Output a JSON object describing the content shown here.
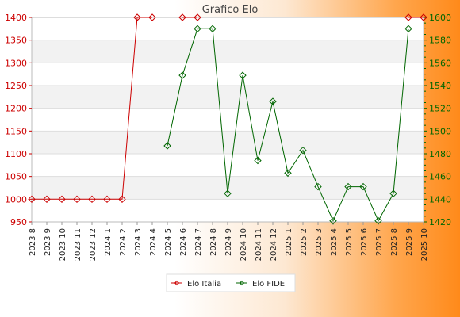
{
  "chart_data": {
    "type": "line",
    "title": "Grafico Elo",
    "categories": [
      "2023 8",
      "2023 9",
      "2023 10",
      "2023 11",
      "2023 12",
      "2024 1",
      "2024 2",
      "2024 3",
      "2024 4",
      "2024 5",
      "2024 6",
      "2024 7",
      "2024 8",
      "2024 9",
      "2024 10",
      "2024 11",
      "2024 12",
      "2025 1",
      "2025 2",
      "2025 3",
      "2025 4",
      "2025 5",
      "2025 6",
      "2025 7",
      "2025 8",
      "2025 9",
      "2025 10"
    ],
    "left_axis": {
      "min": 950,
      "max": 1400,
      "ticks": [
        950,
        1000,
        1050,
        1100,
        1150,
        1200,
        1250,
        1300,
        1350,
        1400
      ],
      "color": "#cc0000"
    },
    "right_axis": {
      "min": 1420,
      "max": 1600,
      "ticks": [
        1420,
        1440,
        1460,
        1480,
        1500,
        1520,
        1540,
        1560,
        1580,
        1600
      ],
      "color": "#006600"
    },
    "grid": true,
    "legend_position": "bottom",
    "series": [
      {
        "name": "Elo Italia",
        "axis": "left",
        "color": "#cc0000",
        "segments": [
          [
            [
              0,
              1000
            ],
            [
              1,
              1000
            ],
            [
              2,
              1000
            ],
            [
              3,
              1000
            ],
            [
              4,
              1000
            ],
            [
              5,
              1000
            ],
            [
              6,
              1000
            ],
            [
              7,
              1400
            ],
            [
              8,
              1400
            ]
          ],
          [
            [
              10,
              1400
            ],
            [
              11,
              1400
            ]
          ],
          [
            [
              25,
              1400
            ],
            [
              26,
              1400
            ]
          ]
        ]
      },
      {
        "name": "Elo FIDE",
        "axis": "right",
        "color": "#006600",
        "segments": [
          [
            [
              9,
              1487
            ],
            [
              10,
              1549
            ],
            [
              11,
              1590
            ],
            [
              12,
              1590
            ],
            [
              13,
              1445
            ],
            [
              14,
              1549
            ],
            [
              15,
              1474
            ],
            [
              16,
              1526
            ],
            [
              17,
              1463
            ],
            [
              18,
              1483
            ],
            [
              19,
              1451
            ],
            [
              20,
              1421
            ],
            [
              21,
              1451
            ],
            [
              22,
              1451
            ],
            [
              23,
              1421
            ],
            [
              24,
              1445
            ],
            [
              25,
              1590
            ]
          ]
        ]
      }
    ]
  }
}
